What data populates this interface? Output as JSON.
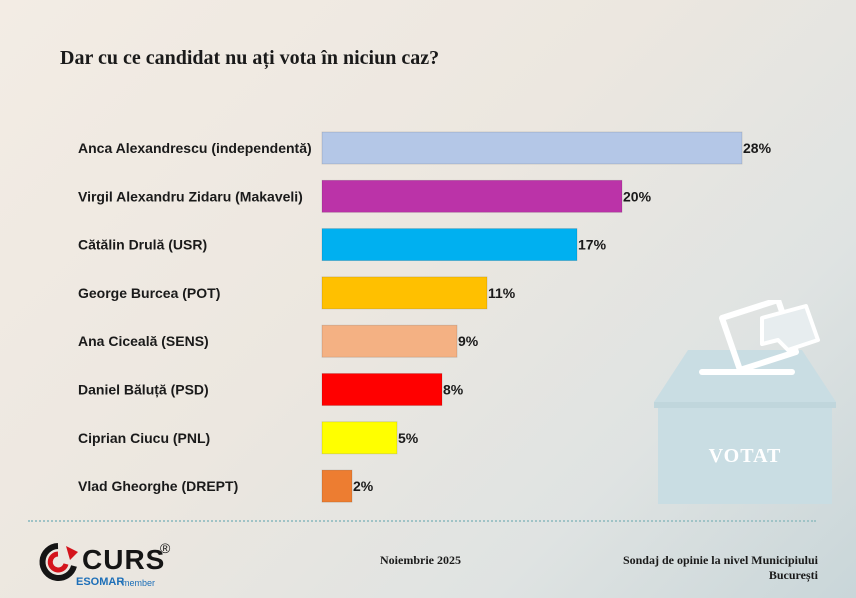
{
  "title": "Dar cu ce candidat nu ați vota în niciun caz?",
  "chart_data": {
    "type": "bar",
    "orientation": "horizontal",
    "categories": [
      "Anca Alexandrescu (independentă)",
      "Virgil Alexandru Zidaru (Makaveli)",
      "Cătălin Drulă (USR)",
      "George Burcea (POT)",
      "Ana Ciceală (SENS)",
      "Daniel Băluță (PSD)",
      "Ciprian Ciucu (PNL)",
      "Vlad Gheorghe (DREPT)"
    ],
    "values": [
      28,
      20,
      17,
      11,
      9,
      8,
      5,
      2
    ],
    "value_labels": [
      "28%",
      "20%",
      "17%",
      "11%",
      "9%",
      "8%",
      "5%",
      "2%"
    ],
    "colors": [
      "#b4c7e7",
      "#bb33a8",
      "#00b0f0",
      "#ffc000",
      "#f4b183",
      "#ff0000",
      "#ffff00",
      "#ed7d31"
    ],
    "unit": "%",
    "xlim": [
      0,
      28
    ],
    "grid": false,
    "legend": "none"
  },
  "footer": {
    "date": "Noiembrie 2025",
    "survey_line1": "Sondaj de opinie la nivel Municipiului",
    "survey_line2": "București"
  },
  "logo": {
    "name": "CURS",
    "registered": "®",
    "affiliation": "ESOMAR",
    "affiliation_sub": "member"
  },
  "ballot": {
    "label": "VOTAT"
  }
}
